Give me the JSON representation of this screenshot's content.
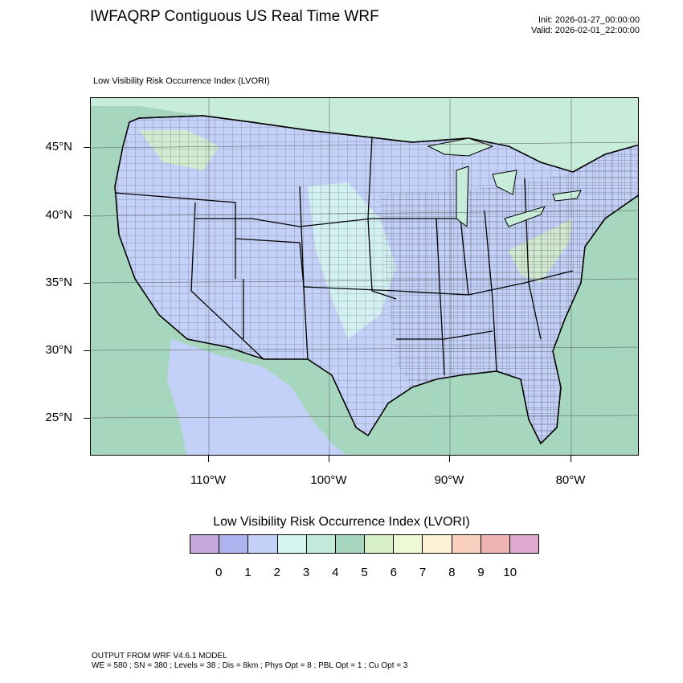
{
  "header": {
    "title": "IWFAQRP Contiguous US Real Time WRF",
    "init": "Init: 2026-01-27_00:00:00",
    "valid": "Valid: 2026-02-01_22:00:00"
  },
  "field_label": "Low Visibility Risk Occurrence Index   (LVORI)",
  "map": {
    "latitude_labels": [
      "45°N",
      "40°N",
      "35°N",
      "30°N",
      "25°N"
    ],
    "longitude_labels": [
      "110°W",
      "100°W",
      "90°W",
      "80°W"
    ],
    "colors": {
      "ocean": "#a6d6bd",
      "land_base": "#c3d0f7",
      "border": "#000000"
    }
  },
  "legend": {
    "title": "Low Visibility Risk Occurrence Index  (LVORI)",
    "labels": [
      "0",
      "1",
      "2",
      "3",
      "4",
      "5",
      "6",
      "7",
      "8",
      "9",
      "10"
    ],
    "colors": [
      "#c7a8dc",
      "#aeb3ed",
      "#c3d0f7",
      "#d5f5f1",
      "#c3ebdb",
      "#a6d6bd",
      "#d6efc8",
      "#eef8d4",
      "#fff1d4",
      "#f9d0bf",
      "#eeb4b4",
      "#dfa8d0"
    ]
  },
  "footer": {
    "line1": "OUTPUT FROM WRF V4.6.1 MODEL",
    "line2": "WE = 580 ; SN = 380 ; Levels = 38 ; Dis = 8km ; Phys Opt = 8 ; PBL Opt = 1 ; Cu Opt = 3"
  }
}
